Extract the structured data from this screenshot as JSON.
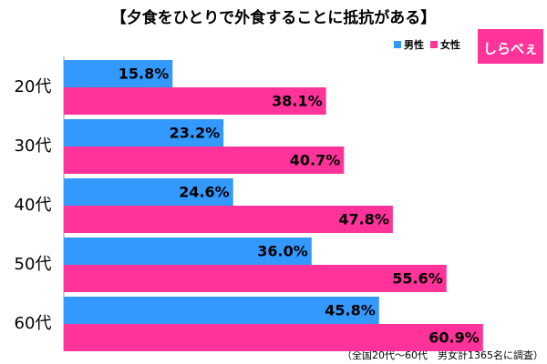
{
  "chart_data": {
    "type": "hbar",
    "title": "【夕食をひとりで外食することに抵抗がある】",
    "categories": [
      "20代",
      "30代",
      "40代",
      "50代",
      "60代"
    ],
    "series": [
      {
        "name": "男性",
        "color": "#3399ff",
        "values": [
          15.8,
          23.2,
          24.6,
          36.0,
          45.8
        ],
        "value_labels": [
          "15.8%",
          "23.2%",
          "24.6%",
          "36.0%",
          "45.8%"
        ]
      },
      {
        "name": "女性",
        "color": "#ff3399",
        "values": [
          38.1,
          40.7,
          47.8,
          55.6,
          60.9
        ],
        "value_labels": [
          "38.1%",
          "40.7%",
          "47.8%",
          "55.6%",
          "60.9%"
        ]
      }
    ],
    "logo": "しらべぇ",
    "footnote": "（全国20代～60代　男女計1365名に調査）"
  }
}
